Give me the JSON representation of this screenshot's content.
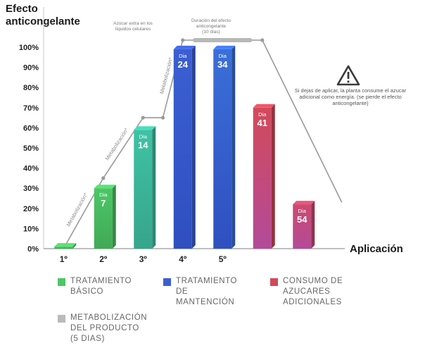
{
  "chart_data": {
    "type": "bar",
    "title": "Efecto\nanticongelante",
    "xlabel": "Aplicación",
    "ylim": [
      0,
      100
    ],
    "yticks": [
      "0%",
      "10%",
      "20%",
      "30%",
      "40%",
      "50%",
      "60%",
      "70%",
      "80%",
      "90%",
      "100%"
    ],
    "categories": [
      "1º",
      "2º",
      "3º",
      "4º",
      "5º",
      "",
      ""
    ],
    "series": [
      {
        "name": "Tratamiento básico",
        "values": [
          1,
          30,
          59,
          null,
          null,
          null,
          null
        ],
        "color": "#4cc765"
      },
      {
        "name": "Tratamiento de mantención",
        "values": [
          null,
          null,
          null,
          99,
          99,
          null,
          null
        ],
        "color": "#3b5fd1"
      },
      {
        "name": "Consumo de azucares adicionales",
        "values": [
          null,
          null,
          null,
          null,
          null,
          70,
          22
        ],
        "color": "#d24a5a"
      }
    ],
    "bars": [
      {
        "value": 1,
        "day_label": "",
        "day": "",
        "color": "#4cc765"
      },
      {
        "value": 30,
        "day_label": "Dia",
        "day": "7",
        "color": "#4cc765"
      },
      {
        "value": 59,
        "day_label": "Dia",
        "day": "14",
        "color": "#3fc2a4"
      },
      {
        "value": 99,
        "day_label": "Dia",
        "day": "24",
        "color": "#3b5fd1"
      },
      {
        "value": 99,
        "day_label": "Dia",
        "day": "34",
        "color": "#3b6fd8"
      },
      {
        "value": 70,
        "day_label": "Dia",
        "day": "41",
        "color": "#d24a5a"
      },
      {
        "value": 22,
        "day_label": "Dia",
        "day": "54",
        "color": "#cc4a70"
      }
    ],
    "effect_line": [
      [
        0.5,
        0
      ],
      [
        1.5,
        35
      ],
      [
        2.5,
        65
      ],
      [
        3,
        65
      ],
      [
        3.5,
        103.5
      ],
      [
        5,
        103.5
      ],
      [
        5.5,
        103.5
      ],
      [
        7.5,
        23
      ]
    ],
    "metab_labels": [
      "Metabolización*",
      "Metabolización*",
      "Metabolización*"
    ],
    "annotations": {
      "sugar": "Azúcar extra en los\nlíquidos celulares",
      "duration": "Duración del efecto\nanticongelante\n(10 días)",
      "warning": "Si dejas de aplicar, la planta consume el azucar adicional como energía. (se pierde el efecto anticongelante)"
    }
  },
  "legend": [
    {
      "label": "TRATAMIENTO\nBÁSICO",
      "color": "#4cc765"
    },
    {
      "label": "TRATAMIENTO\nDE\nMANTENCIÓN",
      "color": "#3b5fd1"
    },
    {
      "label": "CONSUMO DE\nAZUCARES\nADICIONALES",
      "color": "#d24a5a"
    },
    {
      "label": "METABOLIZACIÓN\nDEL PRODUCTO\n(5 DIAS)",
      "color": "#bbbbbb"
    }
  ],
  "icons": {
    "warning": "warning-triangle-icon"
  }
}
